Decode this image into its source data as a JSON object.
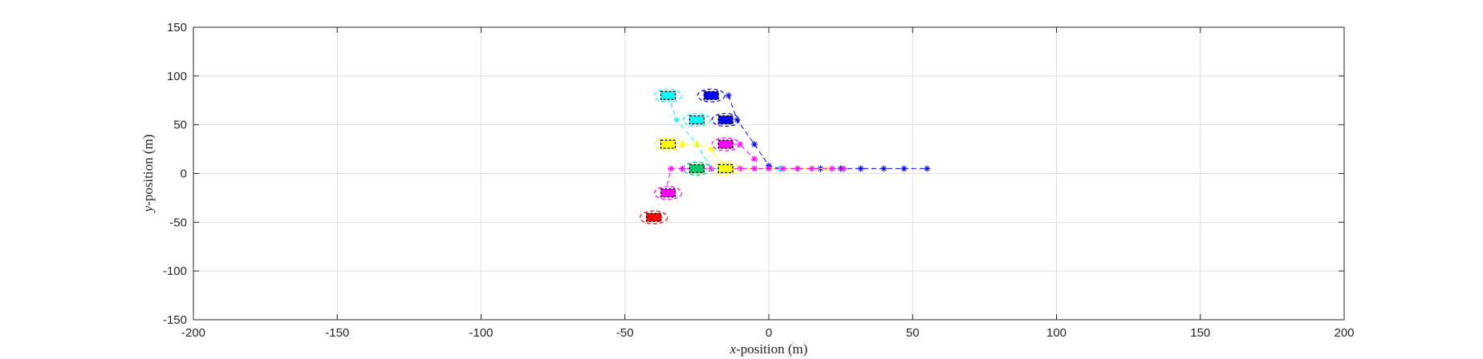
{
  "chart_data": {
    "type": "scatter",
    "title": "",
    "xlabel_var": "x",
    "xlabel_rest": "-position (m)",
    "ylabel_var": "y",
    "ylabel_rest": "-position (m)",
    "xlim": [
      -200,
      200
    ],
    "ylim": [
      -150,
      150
    ],
    "xticks": [
      "-200",
      "-150",
      "-100",
      "-50",
      "0",
      "50",
      "100",
      "150",
      "200"
    ],
    "yticks": [
      "150",
      "100",
      "50",
      "0",
      "-50",
      "-100",
      "-150"
    ],
    "grid": true,
    "colors": {
      "red": "#ff0000",
      "magenta": "#ff00ff",
      "cyan": "#00ffff",
      "blue": "#0000ff",
      "yellow": "#ffff00",
      "green": "#00cc66"
    },
    "vehicles": [
      {
        "name": "red",
        "color": "red",
        "x": -40,
        "y": -45
      },
      {
        "name": "magenta-low",
        "color": "magenta",
        "x": -35,
        "y": -20
      },
      {
        "name": "green-lane",
        "color": "green",
        "x": -25,
        "y": 5
      },
      {
        "name": "yellow-lane",
        "color": "yellow",
        "x": -15,
        "y": 5
      },
      {
        "name": "yellow-upper",
        "color": "yellow",
        "x": -35,
        "y": 30
      },
      {
        "name": "magenta-upper",
        "color": "magenta",
        "x": -15,
        "y": 30
      },
      {
        "name": "cyan-mid",
        "color": "cyan",
        "x": -25,
        "y": 55
      },
      {
        "name": "blue-mid",
        "color": "blue",
        "x": -15,
        "y": 55
      },
      {
        "name": "cyan-top",
        "color": "cyan",
        "x": -35,
        "y": 80
      },
      {
        "name": "blue-top",
        "color": "blue",
        "x": -20,
        "y": 80
      }
    ],
    "trajectories": [
      {
        "color": "blue",
        "x": [
          -14,
          -11,
          -5,
          0,
          4,
          10,
          18,
          25,
          32,
          40,
          47,
          55
        ],
        "y": [
          80,
          55,
          30,
          8,
          5,
          5,
          5,
          5,
          5,
          5,
          5,
          5
        ]
      },
      {
        "color": "cyan",
        "x": [
          -35,
          -32,
          -25,
          -20,
          -15,
          -10,
          -5,
          0,
          4
        ],
        "y": [
          80,
          55,
          30,
          5,
          5,
          5,
          5,
          5,
          5
        ]
      },
      {
        "color": "yellow",
        "x": [
          -35,
          -30,
          -25,
          -20,
          -15,
          -10,
          -5,
          0,
          5,
          10,
          15,
          20
        ],
        "y": [
          30,
          30,
          30,
          25,
          5,
          5,
          5,
          5,
          5,
          5,
          5,
          5
        ]
      },
      {
        "color": "magenta",
        "x": [
          -36,
          -34,
          -30,
          -25,
          -20,
          -15,
          -10,
          -5,
          0,
          5,
          10,
          15,
          22,
          26
        ],
        "y": [
          -20,
          5,
          5,
          5,
          5,
          5,
          5,
          5,
          5,
          5,
          5,
          5,
          5,
          5
        ]
      },
      {
        "color": "magenta",
        "x": [
          -15,
          -10,
          -5
        ],
        "y": [
          30,
          30,
          15
        ]
      },
      {
        "color": "red",
        "x": [
          -40,
          -38
        ],
        "y": [
          -45,
          -45
        ]
      }
    ]
  }
}
